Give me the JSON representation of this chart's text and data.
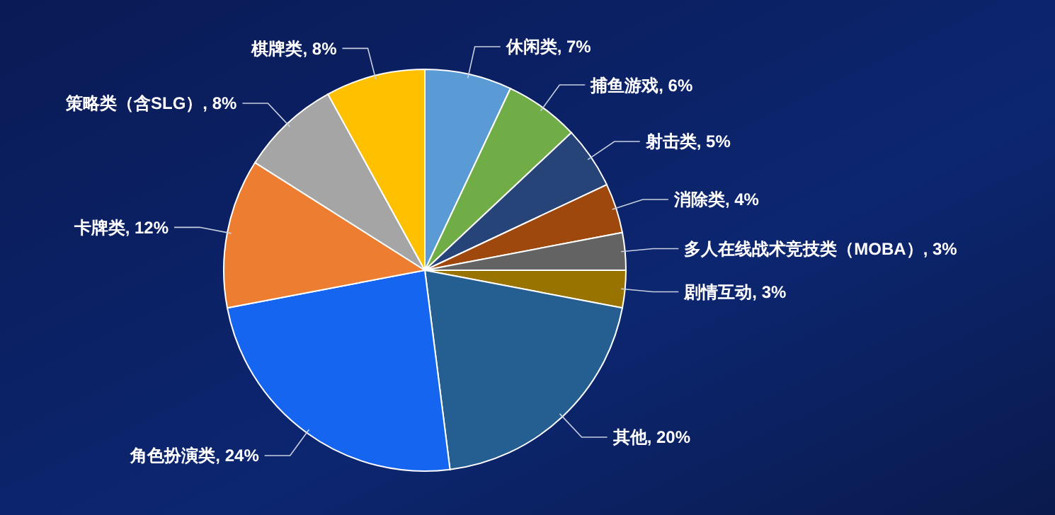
{
  "chart_data": {
    "type": "pie",
    "categories": [
      "休闲类",
      "捕鱼游戏",
      "射击类",
      "消除类",
      "多人在线战术竞技类（MOBA）",
      "剧情互动",
      "其他",
      "角色扮演类",
      "卡牌类",
      "策略类（含SLG）",
      "棋牌类"
    ],
    "values": [
      7,
      6,
      5,
      4,
      3,
      3,
      20,
      24,
      12,
      8,
      8
    ],
    "value_labels": [
      "7%",
      "6%",
      "5%",
      "4%",
      "3%",
      "3%",
      "20%",
      "24%",
      "12%",
      "8%",
      "8%"
    ],
    "colors": [
      "#5b9bd5",
      "#70ad47",
      "#264478",
      "#9e480e",
      "#636363",
      "#997300",
      "#255e91",
      "#1565f0",
      "#ed7d31",
      "#a5a5a5",
      "#ffc000"
    ]
  }
}
